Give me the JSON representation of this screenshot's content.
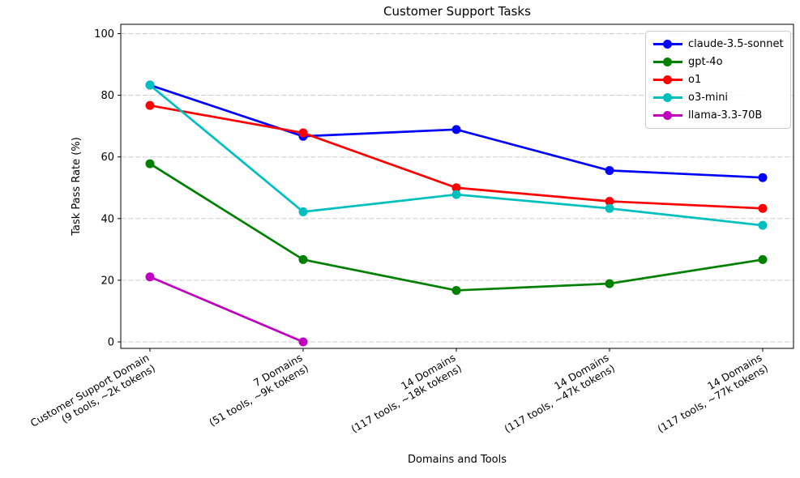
{
  "chart_data": {
    "type": "line",
    "title": "Customer Support Tasks",
    "xlabel": "Domains and Tools",
    "ylabel": "Task Pass Rate (%)",
    "categories": [
      "Customer Support Domain\n(9 tools, ~2k tokens)",
      "7 Domains\n(51 tools, ~9k tokens)",
      "14 Domains\n(117 tools, ~18k tokens)",
      "14 Domains\n(117 tools, ~47k tokens)",
      "14 Domains\n(117 tools, ~77k tokens)"
    ],
    "series": [
      {
        "name": "claude-3.5-sonnet",
        "color": "#0000ff",
        "values": [
          83.3,
          66.7,
          68.9,
          55.6,
          53.3
        ]
      },
      {
        "name": "gpt-4o",
        "color": "#008000",
        "values": [
          57.8,
          26.7,
          16.7,
          18.9,
          26.7
        ]
      },
      {
        "name": "o1",
        "color": "#ff0000",
        "values": [
          76.7,
          67.8,
          50.0,
          45.6,
          43.3
        ]
      },
      {
        "name": "o3-mini",
        "color": "#00bfbf",
        "values": [
          83.3,
          42.2,
          47.8,
          43.3,
          37.8
        ]
      },
      {
        "name": "llama-3.3-70B",
        "color": "#bf00bf",
        "values": [
          21.1,
          0.0,
          null,
          null,
          null
        ]
      }
    ],
    "yticks": [
      "0",
      "20",
      "40",
      "60",
      "80",
      "100"
    ],
    "ylim": [
      -2.5,
      103.0
    ],
    "xlim_categories": [
      0,
      4
    ],
    "grid": "horizontal-dashed",
    "grid_color": "#cdcdcd",
    "legend_position": "upper-right",
    "x_tick_rotation_deg": 30,
    "marker": "circle",
    "spine_color": "#000000"
  }
}
